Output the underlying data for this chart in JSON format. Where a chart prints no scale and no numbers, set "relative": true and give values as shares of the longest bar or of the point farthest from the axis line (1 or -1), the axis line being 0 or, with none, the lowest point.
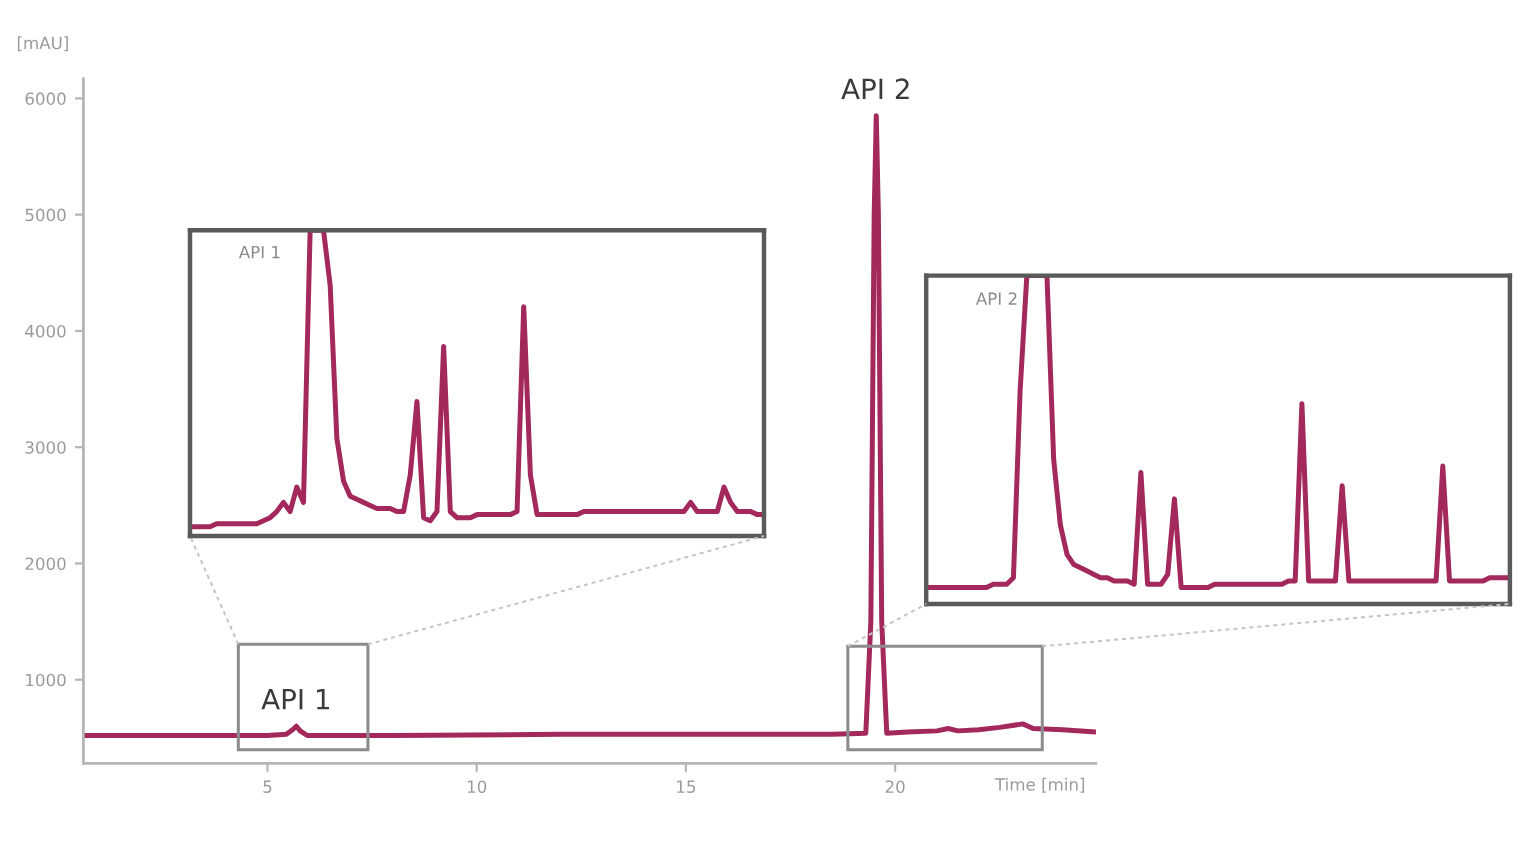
{
  "chart_data": [
    {
      "type": "line",
      "xlabel": "Time [min]",
      "ylabel": "[mAU]",
      "color": "#a3285c",
      "x": [
        0.6,
        3,
        5,
        5.45,
        5.6,
        5.69,
        5.78,
        5.95,
        8,
        12,
        16,
        18.5,
        19.3,
        19.42,
        19.5,
        19.55,
        19.6,
        19.68,
        19.8,
        20.3,
        21.0,
        21.27,
        21.5,
        22.0,
        22.5,
        23.05,
        23.3,
        24.0,
        24.8
      ],
      "values": [
        520,
        520,
        520,
        530,
        570,
        600,
        560,
        520,
        520,
        530,
        530,
        530,
        540,
        1500,
        5000,
        5850,
        5000,
        1500,
        540,
        550,
        560,
        580,
        560,
        570,
        590,
        620,
        580,
        570,
        550
      ],
      "xlim": [
        0.6,
        24.8
      ],
      "xticks": [
        5,
        10,
        15,
        20
      ],
      "ylim": [
        280,
        6170
      ],
      "yticks": [
        1000,
        2000,
        3000,
        4000,
        5000,
        6000
      ],
      "annotations": [
        {
          "text": "API 1",
          "x": 5.69,
          "y": 600
        },
        {
          "text": "API 2",
          "x": 19.55,
          "y": 5850
        }
      ]
    },
    {
      "type": "line",
      "relative": true,
      "color": "#a3285c",
      "annotations": [
        "API 1"
      ],
      "categories": [
        null,
        null,
        null,
        null,
        null,
        null,
        null,
        null,
        null,
        null,
        null,
        null,
        null,
        null,
        null,
        null,
        null,
        null,
        null,
        null,
        null,
        null,
        null,
        null,
        null,
        null,
        null,
        null,
        null,
        null,
        null,
        null,
        null,
        null,
        null,
        null,
        null,
        null,
        null,
        null,
        null,
        null,
        null,
        null,
        null,
        null,
        null,
        null,
        null,
        null,
        null,
        null,
        null,
        null,
        null,
        null,
        null,
        null,
        null,
        null,
        null,
        null,
        null,
        null,
        null,
        null,
        null,
        null,
        null,
        null,
        null,
        null,
        null,
        null,
        null,
        null,
        null,
        null,
        null,
        null,
        null,
        null,
        null,
        null,
        null,
        null,
        null
      ],
      "values": [
        0.03,
        0.03,
        0.03,
        0.03,
        0.04,
        0.04,
        0.04,
        0.04,
        0.04,
        0.04,
        0.04,
        0.05,
        0.06,
        0.08,
        0.11,
        0.08,
        0.16,
        0.11,
        1,
        1,
        1,
        0.82,
        0.32,
        0.18,
        0.13,
        0.12,
        0.11,
        0.1,
        0.09,
        0.09,
        0.09,
        0.08,
        0.08,
        0.2,
        0.44,
        0.06,
        0.05,
        0.08,
        0.62,
        0.08,
        0.06,
        0.06,
        0.06,
        0.07,
        0.07,
        0.07,
        0.07,
        0.07,
        0.07,
        0.08,
        0.75,
        0.2,
        0.07,
        0.07,
        0.07,
        0.07,
        0.07,
        0.07,
        0.07,
        0.08,
        0.08,
        0.08,
        0.08,
        0.08,
        0.08,
        0.08,
        0.08,
        0.08,
        0.08,
        0.08,
        0.08,
        0.08,
        0.08,
        0.08,
        0.08,
        0.11,
        0.08,
        0.08,
        0.08,
        0.08,
        0.16,
        0.11,
        0.08,
        0.08,
        0.08,
        0.07,
        0.07
      ]
    },
    {
      "type": "line",
      "relative": true,
      "color": "#a3285c",
      "annotations": [
        "API 2"
      ],
      "categories": [
        null,
        null,
        null,
        null,
        null,
        null,
        null,
        null,
        null,
        null,
        null,
        null,
        null,
        null,
        null,
        null,
        null,
        null,
        null,
        null,
        null,
        null,
        null,
        null,
        null,
        null,
        null,
        null,
        null,
        null,
        null,
        null,
        null,
        null,
        null,
        null,
        null,
        null,
        null,
        null,
        null,
        null,
        null,
        null,
        null,
        null,
        null,
        null,
        null,
        null,
        null,
        null,
        null,
        null,
        null,
        null,
        null,
        null,
        null,
        null,
        null,
        null,
        null,
        null,
        null,
        null,
        null,
        null,
        null,
        null,
        null,
        null,
        null,
        null,
        null,
        null,
        null,
        null,
        null,
        null,
        null,
        null,
        null,
        null,
        null,
        null,
        null,
        null
      ],
      "values": [
        0.05,
        0.05,
        0.05,
        0.05,
        0.05,
        0.05,
        0.05,
        0.05,
        0.05,
        0.05,
        0.06,
        0.06,
        0.06,
        0.08,
        0.65,
        1,
        1,
        1,
        1,
        0.44,
        0.24,
        0.15,
        0.12,
        0.11,
        0.1,
        0.09,
        0.08,
        0.08,
        0.07,
        0.07,
        0.07,
        0.06,
        0.4,
        0.06,
        0.06,
        0.06,
        0.09,
        0.32,
        0.05,
        0.05,
        0.05,
        0.05,
        0.05,
        0.06,
        0.06,
        0.06,
        0.06,
        0.06,
        0.06,
        0.06,
        0.06,
        0.06,
        0.06,
        0.06,
        0.07,
        0.07,
        0.61,
        0.07,
        0.07,
        0.07,
        0.07,
        0.07,
        0.36,
        0.07,
        0.07,
        0.07,
        0.07,
        0.07,
        0.07,
        0.07,
        0.07,
        0.07,
        0.07,
        0.07,
        0.07,
        0.07,
        0.07,
        0.42,
        0.07,
        0.07,
        0.07,
        0.07,
        0.07,
        0.07,
        0.08,
        0.08,
        0.08,
        0.08
      ]
    }
  ]
}
